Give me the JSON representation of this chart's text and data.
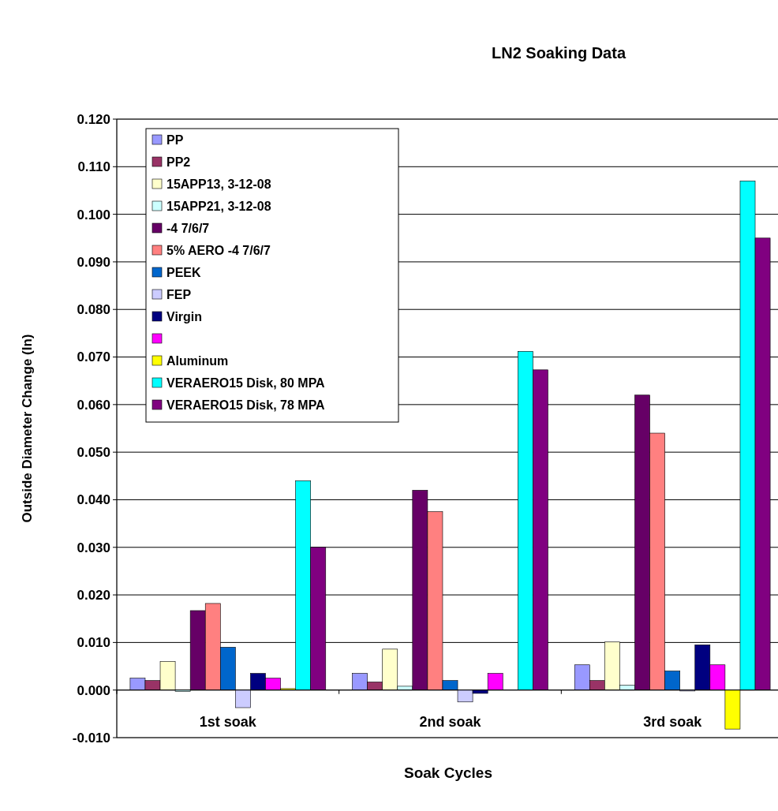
{
  "chart_data": {
    "type": "bar",
    "title": "LN2 Soaking Data",
    "xlabel": "Soak Cycles",
    "ylabel": "Outside Diameter Change (In)",
    "categories": [
      "1st soak",
      "2nd soak",
      "3rd soak"
    ],
    "series": [
      {
        "name": "PP",
        "color": "#9999ff",
        "values": [
          0.0025,
          0.0035,
          0.0053
        ]
      },
      {
        "name": "PP2",
        "color": "#993366",
        "values": [
          0.002,
          0.0017,
          0.002
        ]
      },
      {
        "name": "15APP13, 3-12-08",
        "color": "#ffffcc",
        "values": [
          0.006,
          0.0086,
          0.0101
        ]
      },
      {
        "name": "15APP21, 3-12-08",
        "color": "#ccffff",
        "values": [
          -0.0003,
          0.0008,
          0.001
        ]
      },
      {
        "name": "-4 7/6/7",
        "color": "#660066",
        "values": [
          0.0167,
          0.042,
          0.062
        ]
      },
      {
        "name": "5% AERO -4 7/6/7",
        "color": "#ff8080",
        "values": [
          0.0182,
          0.0375,
          0.054
        ]
      },
      {
        "name": "PEEK",
        "color": "#0066cc",
        "values": [
          0.009,
          0.002,
          0.004
        ]
      },
      {
        "name": "FEP",
        "color": "#ccccff",
        "values": [
          -0.0037,
          -0.0025,
          -0.0002
        ]
      },
      {
        "name": "Virgin",
        "color": "#000080",
        "values": [
          0.0035,
          -0.0007,
          0.0095
        ]
      },
      {
        "color": "#ff00ff",
        "values": [
          0.0025,
          0.0035,
          0.0053
        ]
      },
      {
        "name": "Aluminum",
        "color": "#ffff00",
        "values": [
          0.0003,
          0,
          -0.0082
        ]
      },
      {
        "name": "VERAERO15 Disk, 80 MPA",
        "color": "#00ffff",
        "values": [
          0.044,
          0.0712,
          0.107
        ]
      },
      {
        "name": "VERAERO15 Disk, 78 MPA",
        "color": "#800080",
        "values": [
          0.03,
          0.0673,
          0.095
        ]
      }
    ],
    "ylim": [
      -0.01,
      0.12
    ],
    "yticks": [
      {
        "value": -0.01,
        "label": "-0.010"
      },
      {
        "value": 0,
        "label": "0.000"
      },
      {
        "value": 0.01,
        "label": "0.010"
      },
      {
        "value": 0.02,
        "label": "0.020"
      },
      {
        "value": 0.03,
        "label": "0.030"
      },
      {
        "value": 0.04,
        "label": "0.040"
      },
      {
        "value": 0.05,
        "label": "0.050"
      },
      {
        "value": 0.06,
        "label": "0.060"
      },
      {
        "value": 0.07,
        "label": "0.070"
      },
      {
        "value": 0.08,
        "label": "0.080"
      },
      {
        "value": 0.09,
        "label": "0.090"
      },
      {
        "value": 0.1,
        "label": "0.100"
      },
      {
        "value": 0.11,
        "label": "0.110"
      },
      {
        "value": 0.12,
        "label": "0.120"
      }
    ],
    "grid": "y",
    "legend": "top left"
  }
}
